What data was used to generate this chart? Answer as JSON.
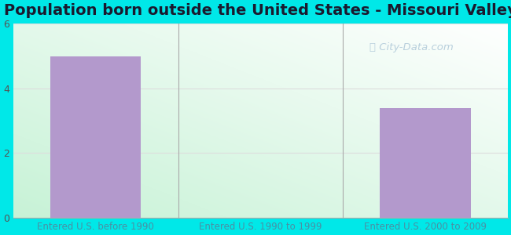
{
  "title": "Population born outside the United States - Missouri Valley",
  "categories": [
    "Entered U.S. before 1990",
    "Entered U.S. 1990 to 1999",
    "Entered U.S. 2000 to 2009"
  ],
  "values": [
    5.0,
    0,
    3.4
  ],
  "bar_color": "#b399cc",
  "bar_width": 0.55,
  "ylim": [
    0,
    6
  ],
  "yticks": [
    0,
    2,
    4,
    6
  ],
  "background_outer": "#00e8e8",
  "title_fontsize": 14,
  "title_color": "#1a1a2e",
  "tick_label_color": "#4a90a4",
  "tick_label_fontsize": 8.5,
  "ytick_color": "#555555",
  "ytick_fontsize": 9,
  "watermark": "City-Data.com",
  "grid_color": "#dddddd",
  "plot_bg_green": [
    0.78,
    0.95,
    0.84
  ],
  "plot_bg_white": [
    1.0,
    1.0,
    1.0
  ]
}
